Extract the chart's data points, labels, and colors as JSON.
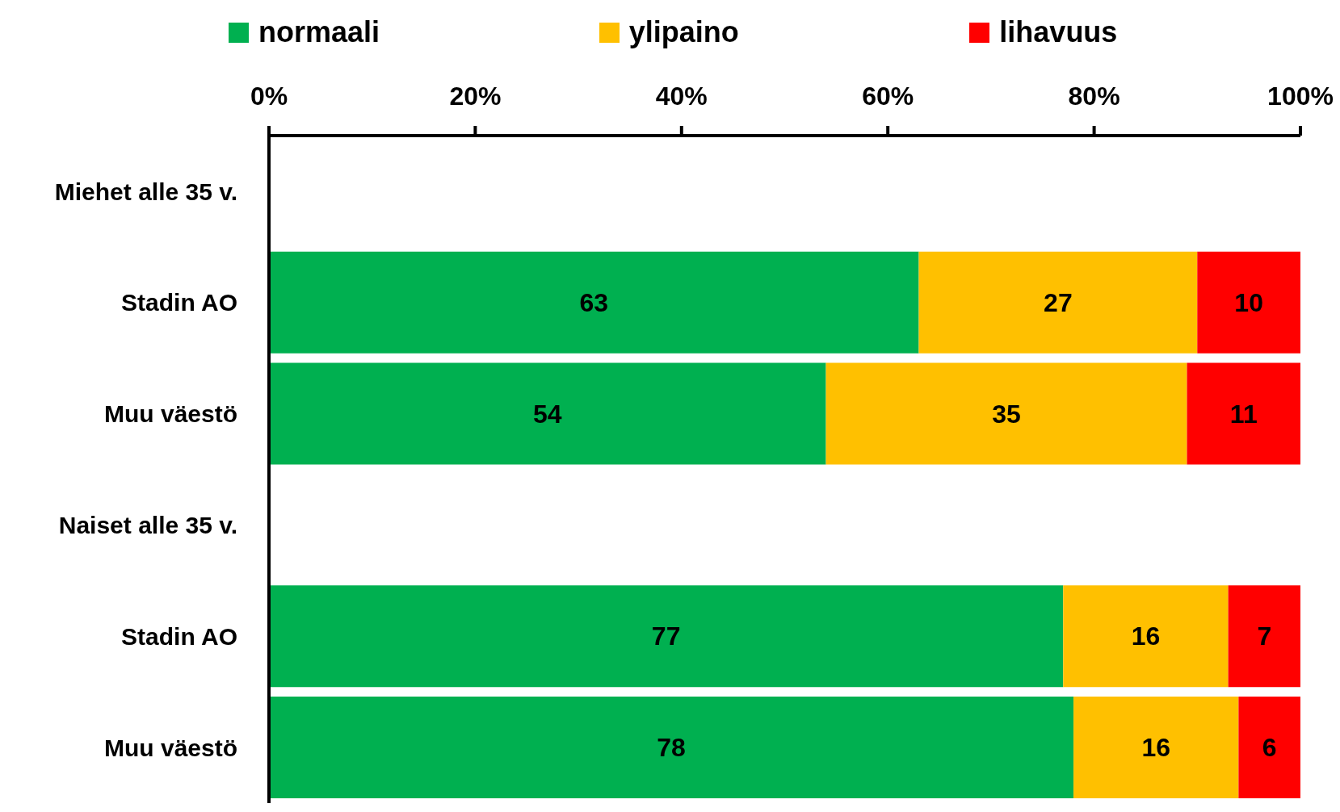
{
  "chart_data": {
    "type": "bar",
    "orientation": "horizontal",
    "stacked": true,
    "categories": [
      "Miehet alle 35 v.",
      "Stadin AO",
      "Muu väestö",
      "Naiset alle 35 v.",
      "Stadin AO",
      "Muu väestö"
    ],
    "series": [
      {
        "name": "normaali",
        "color": "#00b050",
        "values": [
          null,
          63,
          54,
          null,
          77,
          78
        ]
      },
      {
        "name": "ylipaino",
        "color": "#ffc000",
        "values": [
          null,
          27,
          35,
          null,
          16,
          16
        ]
      },
      {
        "name": "lihavuus",
        "color": "#ff0000",
        "values": [
          null,
          10,
          11,
          null,
          7,
          6
        ]
      }
    ],
    "xlim": [
      0,
      100
    ],
    "xticks": [
      {
        "value": 0,
        "label": "0%"
      },
      {
        "value": 20,
        "label": "20%"
      },
      {
        "value": 40,
        "label": "40%"
      },
      {
        "value": 60,
        "label": "60%"
      },
      {
        "value": 80,
        "label": "80%"
      },
      {
        "value": 100,
        "label": "100%"
      }
    ],
    "data_labels": true,
    "legend": "top"
  }
}
